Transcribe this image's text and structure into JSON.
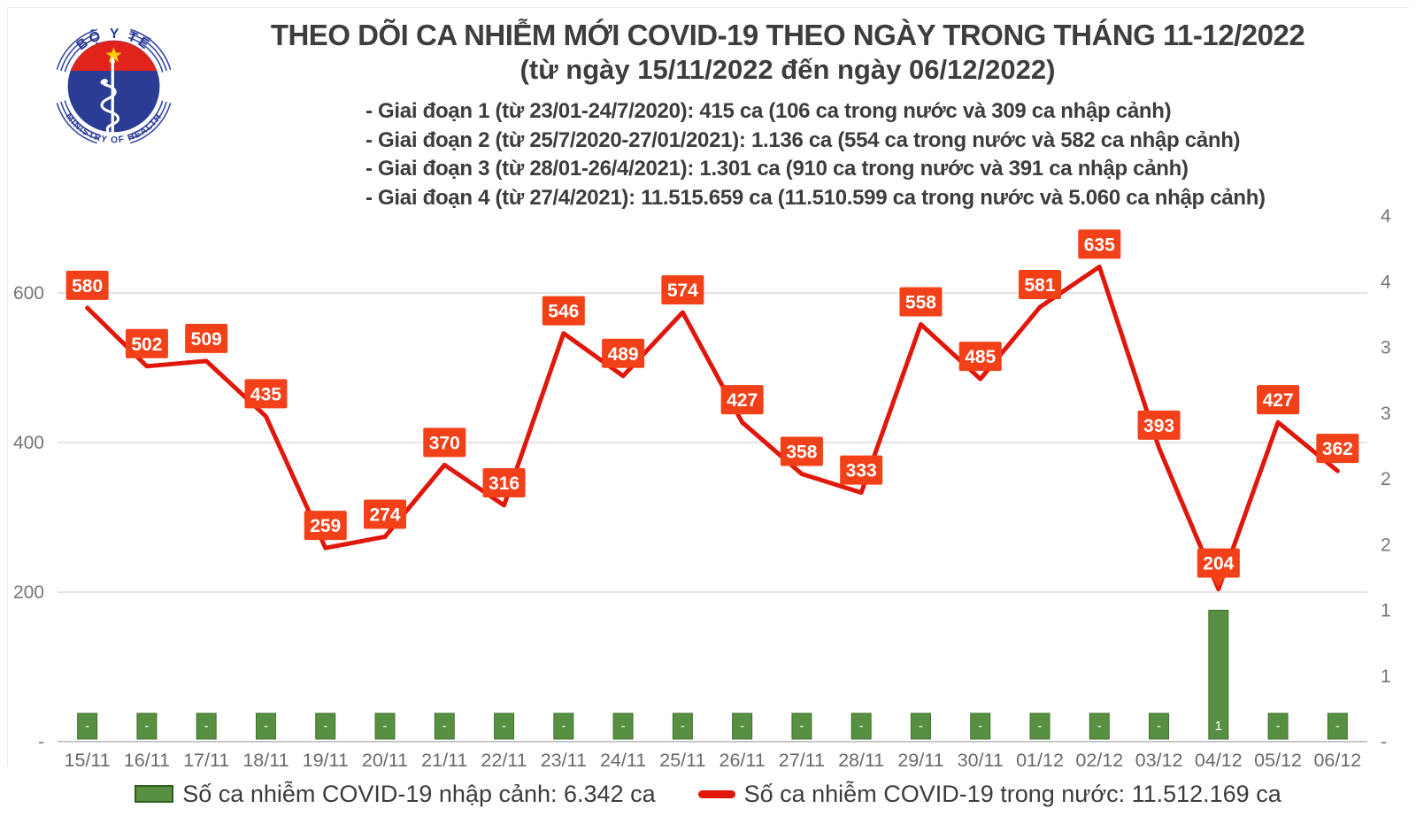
{
  "logo": {
    "top_text": "BỘ Y TẾ",
    "bottom_text": "MINISTRY OF HEALTH"
  },
  "header": {
    "title": "THEO DÕI CA NHIỄM MỚI COVID-19 THEO NGÀY TRONG THÁNG 11-12/2022",
    "subtitle": "(từ ngày 15/11/2022 đến ngày 06/12/2022)",
    "bullets": [
      "- Giai đoạn 1 (từ 23/01-24/7/2020): 415 ca (106 ca trong nước và 309 ca nhập cảnh)",
      "- Giai đoạn 2 (từ 25/7/2020-27/01/2021): 1.136 ca (554 ca trong nước và 582 ca nhập cảnh)",
      "- Giai đoạn 3 (từ 28/01-26/4/2021): 1.301 ca (910 ca trong nước và 391 ca nhập cảnh)",
      "- Giai đoạn 4 (từ 27/4/2021): 11.515.659 ca (11.510.599 ca trong nước và 5.060 ca nhập cảnh)"
    ]
  },
  "legend": {
    "imported_label": "Số ca nhiễm COVID-19 nhập cảnh: 6.342 ca",
    "domestic_label": "Số ca nhiễm COVID-19 trong nước: 11.512.169 ca",
    "imported_color": "#569040",
    "domestic_color": "#e3160c"
  },
  "chart_data": {
    "type": "combo line+bar",
    "categories": [
      "15/11",
      "16/11",
      "17/11",
      "18/11",
      "19/11",
      "20/11",
      "21/11",
      "22/11",
      "23/11",
      "24/11",
      "25/11",
      "26/11",
      "27/11",
      "28/11",
      "29/11",
      "30/11",
      "01/12",
      "02/12",
      "03/12",
      "04/12",
      "05/12",
      "06/12"
    ],
    "series": [
      {
        "name": "Số ca nhiễm COVID-19 trong nước",
        "type": "line",
        "axis": "left",
        "color": "#e0180c",
        "label_bg": "#f24018",
        "values": [
          580,
          502,
          509,
          435,
          259,
          274,
          370,
          316,
          546,
          489,
          574,
          427,
          358,
          333,
          558,
          485,
          581,
          635,
          393,
          204,
          427,
          362
        ],
        "pointer_label_index": 19
      },
      {
        "name": "Số ca nhiễm COVID-19 nhập cảnh",
        "type": "bar",
        "axis": "right",
        "color": "#569040",
        "border_color": "#44702f",
        "values": [
          0,
          0,
          0,
          0,
          0,
          0,
          0,
          0,
          0,
          0,
          0,
          0,
          0,
          0,
          0,
          0,
          0,
          0,
          0,
          1,
          0,
          0
        ],
        "labels": [
          "-",
          "-",
          "-",
          "-",
          "-",
          "-",
          "-",
          "-",
          "-",
          "-",
          "-",
          "-",
          "-",
          "-",
          "-",
          "-",
          "-",
          "-",
          "-",
          "1",
          "-",
          "-"
        ]
      }
    ],
    "left_axis": {
      "range": [
        0,
        700
      ],
      "ticks": [
        {
          "value": 0,
          "label": "-"
        },
        {
          "value": 200,
          "label": "200"
        },
        {
          "value": 400,
          "label": "400"
        },
        {
          "value": 600,
          "label": "600"
        }
      ],
      "gridlines": [
        200,
        400,
        600
      ]
    },
    "right_axis": {
      "range": [
        0,
        4
      ],
      "ticks": [
        {
          "value": 0,
          "label": "-"
        },
        {
          "value": 0.5,
          "label": "1"
        },
        {
          "value": 1,
          "label": "1"
        },
        {
          "value": 1.5,
          "label": "2"
        },
        {
          "value": 2,
          "label": "2"
        },
        {
          "value": 2.5,
          "label": "3"
        },
        {
          "value": 3,
          "label": "3"
        },
        {
          "value": 3.5,
          "label": "4"
        },
        {
          "value": 4,
          "label": "4"
        }
      ]
    },
    "grid_color": "#dcdcdc",
    "baseline_color": "#c8c8c8",
    "legend_position": "bottom"
  }
}
